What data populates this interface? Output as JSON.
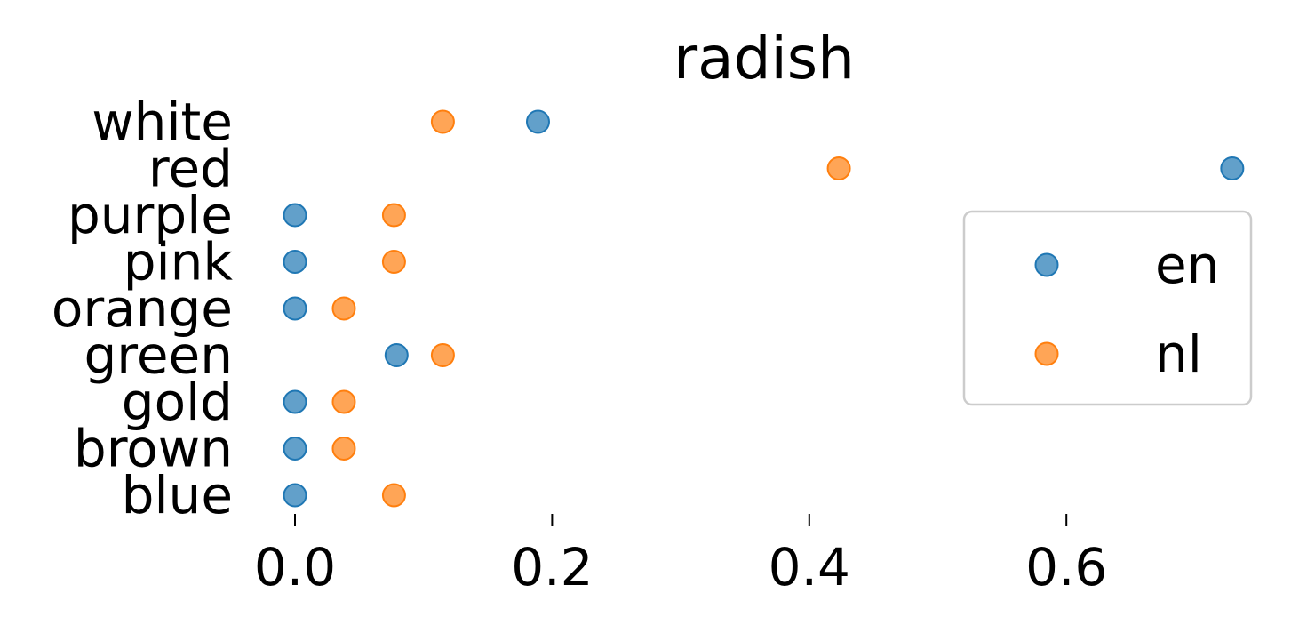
{
  "chart_data": {
    "type": "scatter",
    "title": "radish",
    "xlabel": "",
    "ylabel": "",
    "xlim": [
      -0.025,
      0.74
    ],
    "x_ticks": [
      0.0,
      0.2,
      0.4,
      0.6
    ],
    "x_tick_labels": [
      "0.0",
      "0.2",
      "0.4",
      "0.6"
    ],
    "categories": [
      "blue",
      "brown",
      "gold",
      "green",
      "orange",
      "pink",
      "purple",
      "red",
      "white"
    ],
    "series": [
      {
        "name": "en",
        "color": "#1f77b4",
        "values": [
          0.0,
          0.0,
          0.0,
          0.079,
          0.0,
          0.0,
          0.0,
          0.729,
          0.189
        ]
      },
      {
        "name": "nl",
        "color": "#ff7f0e",
        "values": [
          0.077,
          0.038,
          0.038,
          0.115,
          0.038,
          0.077,
          0.077,
          0.423,
          0.115
        ]
      }
    ],
    "grid": false,
    "legend_position": "center-right"
  }
}
